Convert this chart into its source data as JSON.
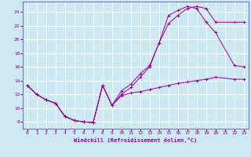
{
  "xlabel": "Windchill (Refroidissement éolien,°C)",
  "bg_color": "#cce8f0",
  "grid_color": "#ffffff",
  "line_color": "#990099",
  "spine_color": "#7777aa",
  "xlim": [
    -0.5,
    23.5
  ],
  "ylim": [
    7,
    25.5
  ],
  "xticks": [
    0,
    1,
    2,
    3,
    4,
    5,
    6,
    7,
    8,
    9,
    10,
    11,
    12,
    13,
    14,
    15,
    16,
    17,
    18,
    19,
    20,
    21,
    22,
    23
  ],
  "yticks": [
    8,
    10,
    12,
    14,
    16,
    18,
    20,
    22,
    24
  ],
  "line1_x": [
    0,
    1,
    2,
    3,
    4,
    5,
    6,
    7,
    8,
    9,
    10,
    11,
    12,
    13,
    14,
    15,
    16,
    17,
    18,
    19,
    20,
    22,
    23
  ],
  "line1_y": [
    13.3,
    12.0,
    11.2,
    10.7,
    8.8,
    8.2,
    8.0,
    7.9,
    13.3,
    10.4,
    11.8,
    12.2,
    12.4,
    12.7,
    13.0,
    13.3,
    13.6,
    13.8,
    14.0,
    14.2,
    14.5,
    14.2,
    14.2
  ],
  "line2_x": [
    0,
    1,
    2,
    3,
    4,
    5,
    6,
    7,
    8,
    9,
    10,
    11,
    12,
    13,
    14,
    15,
    16,
    17,
    18,
    19,
    20,
    22,
    23
  ],
  "line2_y": [
    13.3,
    12.0,
    11.2,
    10.7,
    8.8,
    8.2,
    8.0,
    7.9,
    13.3,
    10.4,
    12.5,
    13.5,
    15.0,
    16.2,
    19.5,
    23.5,
    24.2,
    24.8,
    24.5,
    22.5,
    21.0,
    16.2,
    16.0
  ],
  "line3_x": [
    0,
    1,
    2,
    3,
    4,
    5,
    6,
    7,
    8,
    9,
    10,
    11,
    12,
    13,
    14,
    15,
    16,
    17,
    18,
    19,
    20,
    22,
    23
  ],
  "line3_y": [
    13.3,
    12.0,
    11.2,
    10.7,
    8.8,
    8.2,
    8.0,
    7.9,
    13.3,
    10.4,
    12.0,
    13.0,
    14.5,
    16.0,
    19.5,
    22.3,
    23.5,
    24.5,
    24.8,
    24.5,
    22.5,
    22.5,
    22.5
  ]
}
